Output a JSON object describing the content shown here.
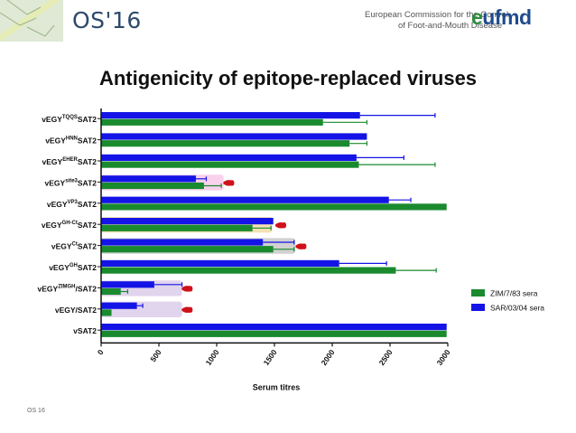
{
  "header": {
    "os_title": "OS'16",
    "commission_line1": "European Commission for the Control",
    "commission_line2": "of Foot-and-Mouth Disease",
    "logo_e": "e",
    "logo_rest": "ufmd"
  },
  "slide_title": "Antigenicity of epitope-replaced viruses",
  "footer": "OS 16",
  "colors": {
    "green": "#1a8a2e",
    "blue": "#1414e6",
    "marker": "#d0101a"
  },
  "chart_data": {
    "type": "bar",
    "orientation": "horizontal",
    "xlabel": "Serum titres",
    "xlim": [
      0,
      3000
    ],
    "xticks": [
      "0",
      "500",
      "1000",
      "1500",
      "2000",
      "2500",
      "3000"
    ],
    "categories": [
      {
        "pre": "vEGY",
        "sup": "TQQS",
        "post": "SAT2"
      },
      {
        "pre": "vEGY",
        "sup": "HNN",
        "post": "SAT2"
      },
      {
        "pre": "vEGY",
        "sup": "EHER",
        "post": "SAT2"
      },
      {
        "pre": "vEGY",
        "sup": "site3",
        "post": "SAT2"
      },
      {
        "pre": "vEGY",
        "sup": "VP3",
        "post": "SAT2"
      },
      {
        "pre": "vEGY",
        "sup": "GH-Ct",
        "post": "SAT2"
      },
      {
        "pre": "vEGY",
        "sup": "Ct",
        "post": "SAT2"
      },
      {
        "pre": "vEGY",
        "sup": "GH",
        "post": "SAT2"
      },
      {
        "pre": "vEGY",
        "sup": "ZIMGH",
        "post": "/SAT2"
      },
      {
        "pre": "vEGY/SAT2",
        "sup": "",
        "post": ""
      },
      {
        "pre": "vSAT2",
        "sup": "",
        "post": ""
      }
    ],
    "series": [
      {
        "name": "SAR/03/04 sera",
        "color": "#1414e6",
        "values": [
          2240,
          2300,
          2210,
          820,
          2490,
          1490,
          1400,
          2060,
          460,
          310,
          2990
        ],
        "err": [
          650,
          0,
          410,
          90,
          190,
          0,
          270,
          410,
          240,
          50,
          0
        ]
      },
      {
        "name": "ZIM/7/83 sera",
        "color": "#1a8a2e",
        "values": [
          1920,
          2150,
          2230,
          890,
          2990,
          1310,
          1490,
          2550,
          170,
          90,
          2990
        ],
        "err": [
          380,
          150,
          660,
          150,
          0,
          160,
          180,
          350,
          60,
          0,
          0
        ]
      }
    ],
    "legend": [
      "ZIM/7/83 sera",
      "SAR/03/04 sera"
    ],
    "legend_position": "right",
    "highlighted_rows": [
      {
        "row": 3,
        "fill": "#f8c9ea",
        "value": 1060
      },
      {
        "row": 5,
        "fill": "#f3dca8",
        "value": 1480
      },
      {
        "row": 6,
        "fill": "#c9c9c9",
        "value": 1680
      },
      {
        "row": 8,
        "fill": "#dccdea",
        "value": 700
      },
      {
        "row": 9,
        "fill": "#dccdea",
        "value": 700
      }
    ],
    "markers": [
      {
        "row": 3,
        "value": 1105
      },
      {
        "row": 5,
        "value": 1555
      },
      {
        "row": 6,
        "value": 1730
      },
      {
        "row": 8,
        "value": 745
      },
      {
        "row": 9,
        "value": 745
      }
    ]
  }
}
